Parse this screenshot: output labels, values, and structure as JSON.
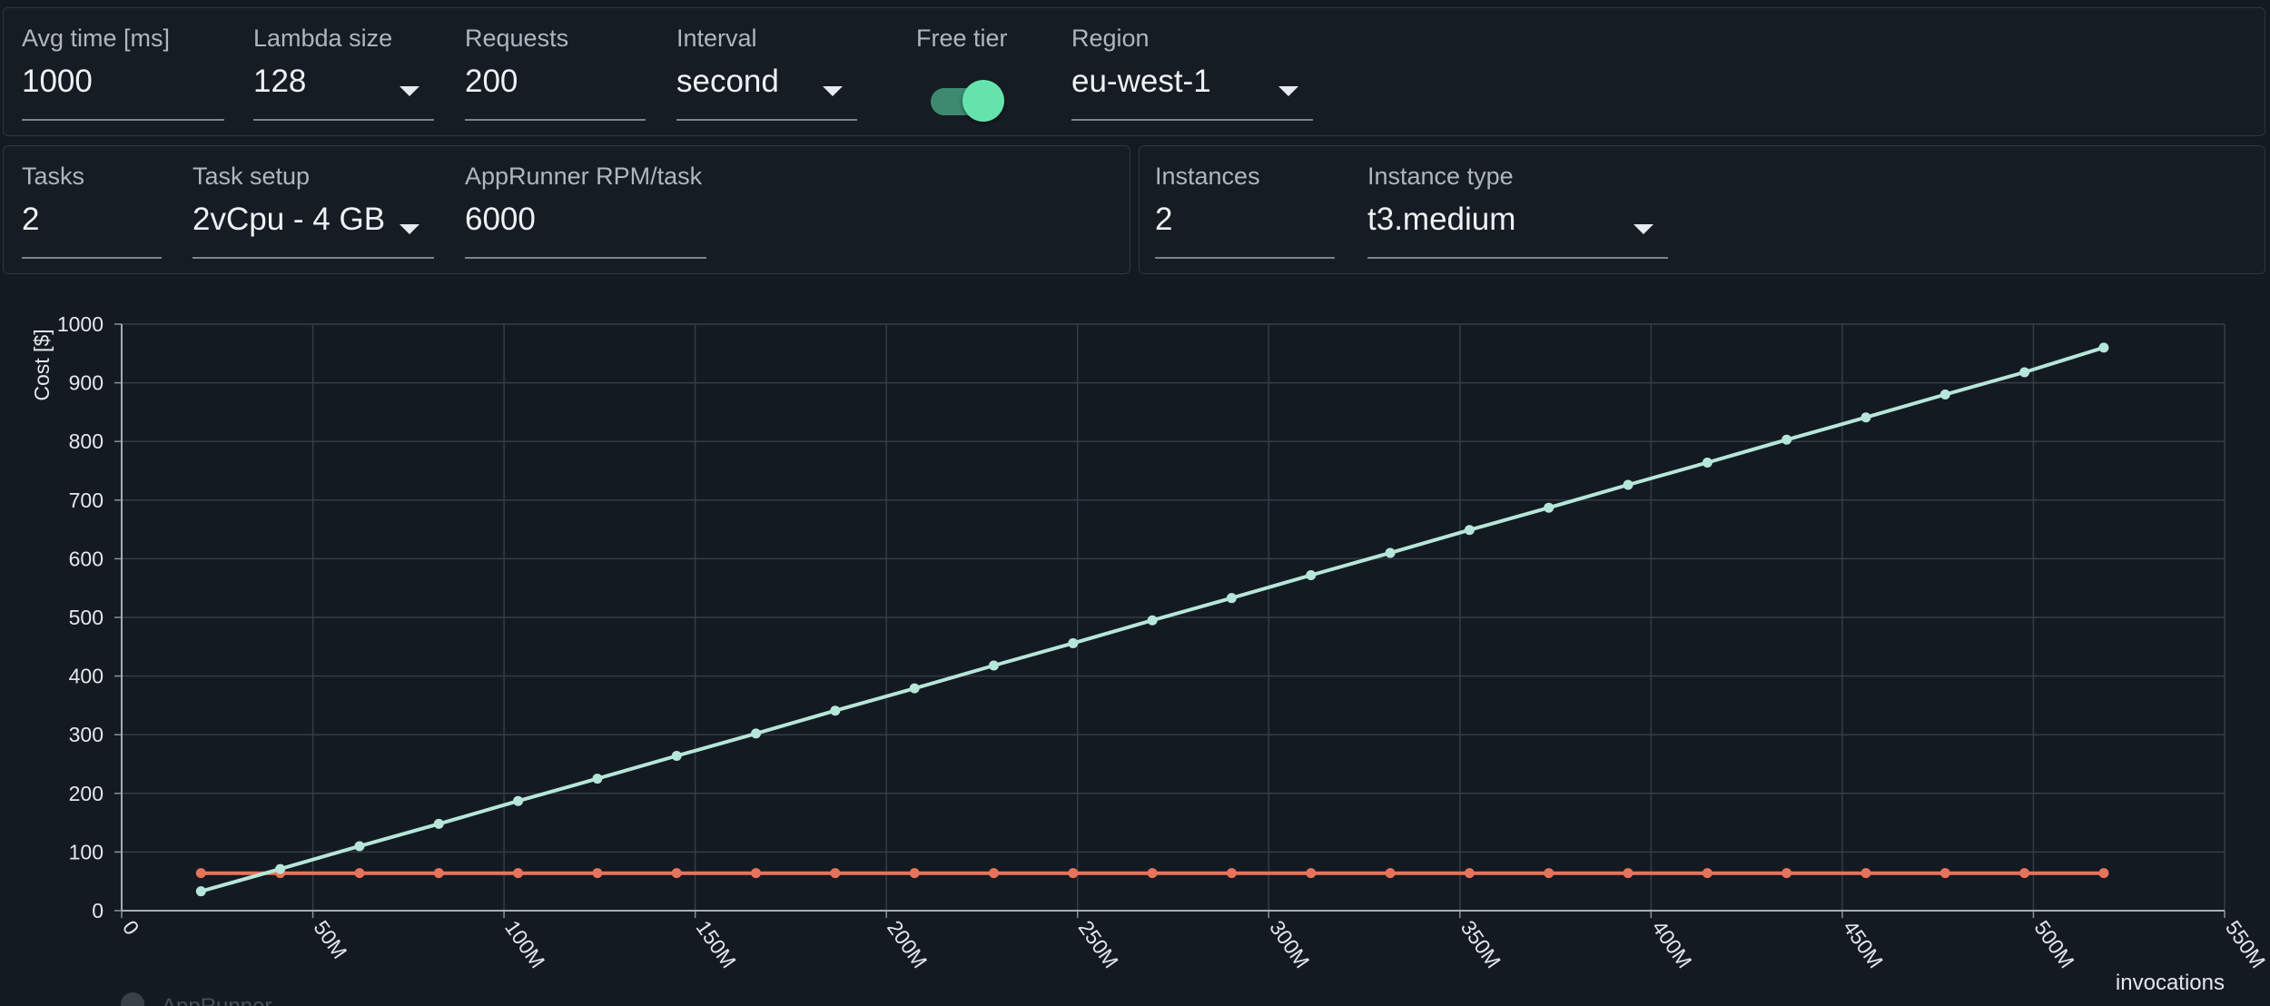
{
  "lambda_panel": {
    "avg_time": {
      "label": "Avg time [ms]",
      "value": "1000"
    },
    "lambda_size": {
      "label": "Lambda size",
      "value": "128"
    },
    "requests": {
      "label": "Requests",
      "value": "200"
    },
    "interval": {
      "label": "Interval",
      "value": "second"
    },
    "free_tier": {
      "label": "Free tier",
      "on": true
    },
    "region": {
      "label": "Region",
      "value": "eu-west-1"
    }
  },
  "apprunner_panel": {
    "tasks": {
      "label": "Tasks",
      "value": "2"
    },
    "task_setup": {
      "label": "Task setup",
      "value": "2vCpu - 4 GB"
    },
    "rpm_per_task": {
      "label": "AppRunner RPM/task",
      "value": "6000"
    }
  },
  "ec2_panel": {
    "instances": {
      "label": "Instances",
      "value": "2"
    },
    "instance_type": {
      "label": "Instance type",
      "value": "t3.medium"
    }
  },
  "colors": {
    "background": "#141a21",
    "accent_toggle": "#66e3ad",
    "series_lambda": "#b6e6da",
    "series_apprunner": "#e8735c"
  },
  "legend": {
    "partial_label": "AppRunner"
  },
  "chart_data": {
    "type": "line",
    "xlabel": "invocations",
    "ylabel": "Cost [$]",
    "xlim": [
      0,
      550000000
    ],
    "ylim": [
      0,
      1000
    ],
    "grid": true,
    "x_ticks": [
      0,
      50000000,
      100000000,
      150000000,
      200000000,
      250000000,
      300000000,
      350000000,
      400000000,
      450000000,
      500000000,
      550000000
    ],
    "x_tick_labels": [
      "0",
      "50M",
      "100M",
      "150M",
      "200M",
      "250M",
      "300M",
      "350M",
      "400M",
      "450M",
      "500M",
      "550M"
    ],
    "y_ticks": [
      0,
      100,
      200,
      300,
      400,
      500,
      600,
      700,
      800,
      900,
      1000
    ],
    "y_tick_labels": [
      "0",
      "100",
      "200",
      "300",
      "400",
      "500",
      "600",
      "700",
      "800",
      "900",
      "1000"
    ],
    "x": [
      20736000,
      41472000,
      62208000,
      82944000,
      103680000,
      124416000,
      145152000,
      165888000,
      186624000,
      207360000,
      228096000,
      248832000,
      269568000,
      290304000,
      311040000,
      331776000,
      352512000,
      373248000,
      393984000,
      414720000,
      435456000,
      456192000,
      476928000,
      497664000,
      518400000
    ],
    "series": [
      {
        "values": [
          33,
          71,
          110,
          148,
          187,
          225,
          264,
          302,
          341,
          379,
          418,
          456,
          495,
          533,
          572,
          610,
          649,
          687,
          726,
          764,
          803,
          841,
          880,
          918,
          960
        ]
      },
      {
        "name": "AppRunner",
        "values": [
          64,
          64,
          64,
          64,
          64,
          64,
          64,
          64,
          64,
          64,
          64,
          64,
          64,
          64,
          64,
          64,
          64,
          64,
          64,
          64,
          64,
          64,
          64,
          64,
          64
        ]
      }
    ]
  }
}
